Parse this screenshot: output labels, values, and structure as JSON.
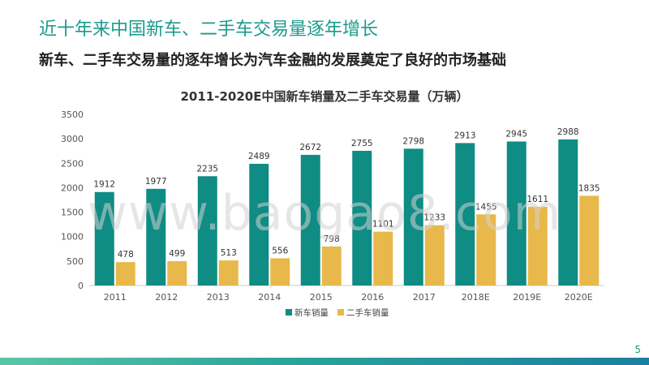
{
  "slide": {
    "title": "近十年来中国新车、二手车交易量逐年增长",
    "subtitle": "新车、二手车交易量的逐年增长为汽车金融的发展奠定了良好的市场基础",
    "page_number": "5",
    "watermark": "www.baogao8.com"
  },
  "colors": {
    "title": "#1a9b8c",
    "series_new": "#0f8c84",
    "series_used": "#e8b84a",
    "bottom_bar": "#2aa39a"
  },
  "chart_data": {
    "type": "bar",
    "title": "2011-2020E中国新车销量及二手车交易量（万辆）",
    "categories": [
      "2011",
      "2012",
      "2013",
      "2014",
      "2015",
      "2016",
      "2017",
      "2018E",
      "2019E",
      "2020E"
    ],
    "series": [
      {
        "name": "新车销量",
        "values": [
          1912,
          1977,
          2235,
          2489,
          2672,
          2755,
          2798,
          2913,
          2945,
          2988
        ]
      },
      {
        "name": "二手车销量",
        "values": [
          478,
          499,
          513,
          556,
          798,
          1101,
          1233,
          1455,
          1611,
          1835
        ]
      }
    ],
    "ylim": [
      0,
      3500
    ],
    "yticks": [
      0,
      500,
      1000,
      1500,
      2000,
      2500,
      3000,
      3500
    ],
    "grid": false,
    "legend_position": "bottom"
  }
}
